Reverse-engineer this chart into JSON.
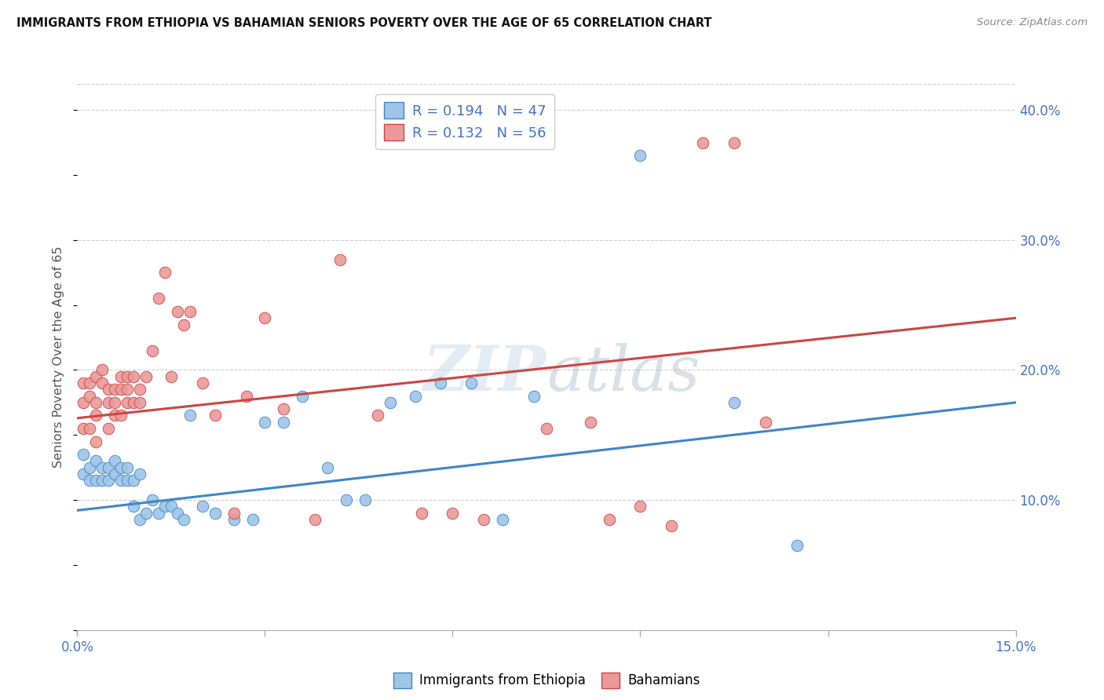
{
  "title": "IMMIGRANTS FROM ETHIOPIA VS BAHAMIAN SENIORS POVERTY OVER THE AGE OF 65 CORRELATION CHART",
  "source": "Source: ZipAtlas.com",
  "ylabel": "Seniors Poverty Over the Age of 65",
  "xlim": [
    0.0,
    0.15
  ],
  "ylim": [
    0.0,
    0.42
  ],
  "x_ticks": [
    0.0,
    0.03,
    0.06,
    0.09,
    0.12,
    0.15
  ],
  "y_ticks_right": [
    0.1,
    0.2,
    0.3,
    0.4
  ],
  "y_tick_labels_right": [
    "10.0%",
    "20.0%",
    "30.0%",
    "40.0%"
  ],
  "legend_text1": "R = 0.194   N = 47",
  "legend_text2": "R = 0.132   N = 56",
  "legend_label1": "Immigrants from Ethiopia",
  "legend_label2": "Bahamians",
  "watermark": "ZIPatlas",
  "blue_color": "#9fc5e8",
  "pink_color": "#ea9999",
  "blue_line_color": "#3d85c8",
  "pink_line_color": "#cc4444",
  "scatter_blue_x": [
    0.001,
    0.001,
    0.002,
    0.002,
    0.003,
    0.003,
    0.004,
    0.004,
    0.005,
    0.005,
    0.006,
    0.006,
    0.007,
    0.007,
    0.008,
    0.008,
    0.009,
    0.009,
    0.01,
    0.01,
    0.011,
    0.012,
    0.013,
    0.014,
    0.015,
    0.016,
    0.017,
    0.018,
    0.02,
    0.022,
    0.025,
    0.028,
    0.03,
    0.033,
    0.036,
    0.04,
    0.043,
    0.046,
    0.05,
    0.054,
    0.058,
    0.063,
    0.068,
    0.073,
    0.09,
    0.105,
    0.115
  ],
  "scatter_blue_y": [
    0.135,
    0.12,
    0.125,
    0.115,
    0.13,
    0.115,
    0.125,
    0.115,
    0.115,
    0.125,
    0.12,
    0.13,
    0.115,
    0.125,
    0.115,
    0.125,
    0.095,
    0.115,
    0.085,
    0.12,
    0.09,
    0.1,
    0.09,
    0.095,
    0.095,
    0.09,
    0.085,
    0.165,
    0.095,
    0.09,
    0.085,
    0.085,
    0.16,
    0.16,
    0.18,
    0.125,
    0.1,
    0.1,
    0.175,
    0.18,
    0.19,
    0.19,
    0.085,
    0.18,
    0.365,
    0.175,
    0.065
  ],
  "scatter_pink_x": [
    0.001,
    0.001,
    0.001,
    0.002,
    0.002,
    0.002,
    0.003,
    0.003,
    0.003,
    0.003,
    0.004,
    0.004,
    0.005,
    0.005,
    0.005,
    0.006,
    0.006,
    0.006,
    0.007,
    0.007,
    0.007,
    0.008,
    0.008,
    0.008,
    0.009,
    0.009,
    0.01,
    0.01,
    0.011,
    0.012,
    0.013,
    0.014,
    0.015,
    0.016,
    0.017,
    0.018,
    0.02,
    0.022,
    0.025,
    0.027,
    0.03,
    0.033,
    0.038,
    0.042,
    0.048,
    0.055,
    0.06,
    0.065,
    0.075,
    0.082,
    0.085,
    0.09,
    0.095,
    0.1,
    0.105,
    0.11
  ],
  "scatter_pink_y": [
    0.19,
    0.155,
    0.175,
    0.18,
    0.19,
    0.155,
    0.165,
    0.175,
    0.195,
    0.145,
    0.19,
    0.2,
    0.175,
    0.185,
    0.155,
    0.185,
    0.175,
    0.165,
    0.165,
    0.185,
    0.195,
    0.195,
    0.175,
    0.185,
    0.175,
    0.195,
    0.175,
    0.185,
    0.195,
    0.215,
    0.255,
    0.275,
    0.195,
    0.245,
    0.235,
    0.245,
    0.19,
    0.165,
    0.09,
    0.18,
    0.24,
    0.17,
    0.085,
    0.285,
    0.165,
    0.09,
    0.09,
    0.085,
    0.155,
    0.16,
    0.085,
    0.095,
    0.08,
    0.375,
    0.375,
    0.16
  ],
  "blue_trend_x": [
    0.0,
    0.15
  ],
  "blue_trend_y": [
    0.092,
    0.175
  ],
  "pink_trend_x": [
    0.0,
    0.15
  ],
  "pink_trend_y": [
    0.163,
    0.24
  ]
}
